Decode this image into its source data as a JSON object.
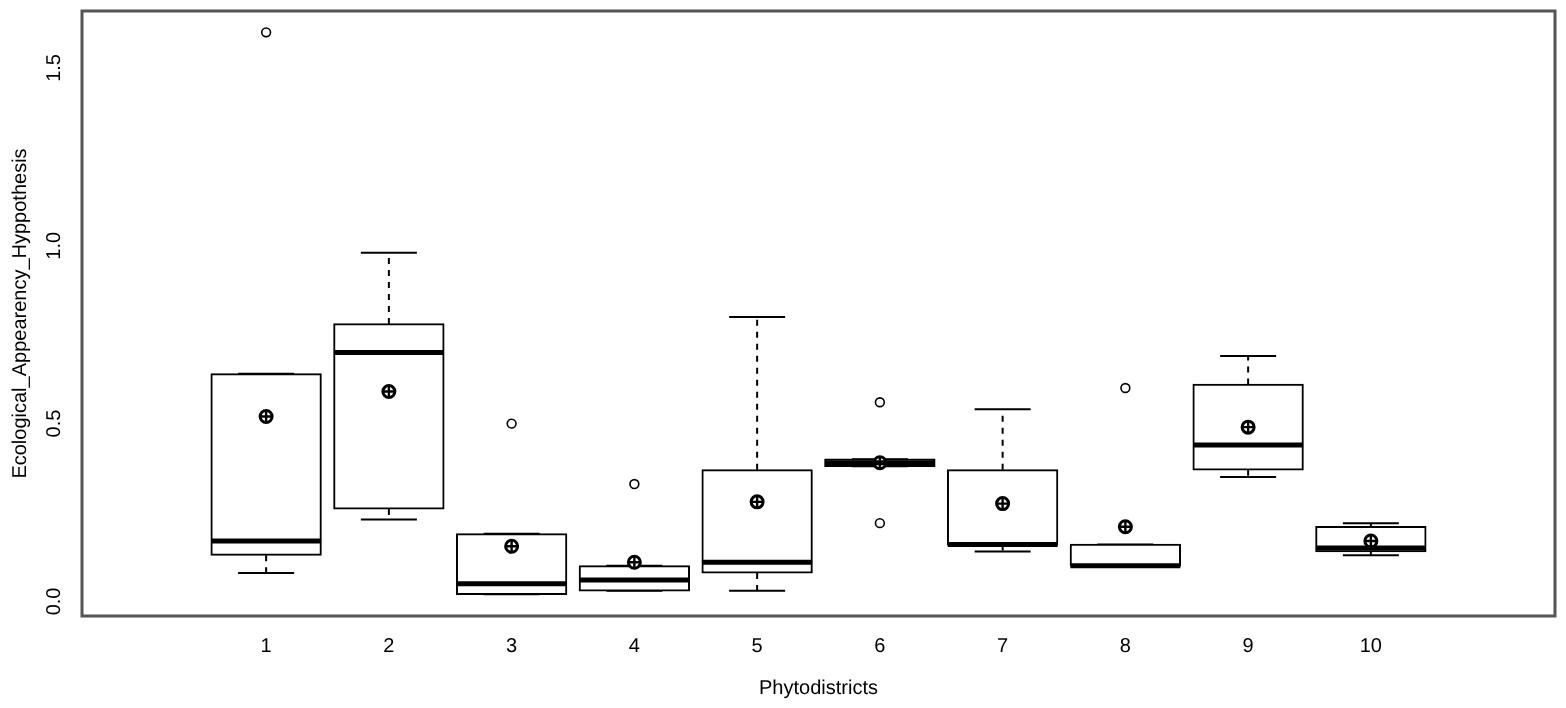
{
  "chart_data": {
    "type": "box",
    "xlabel": "Phytodistricts",
    "ylabel": "Ecological_Appearency_Hyppothesis",
    "categories": [
      "1",
      "2",
      "3",
      "4",
      "5",
      "6",
      "7",
      "8",
      "9",
      "10"
    ],
    "boxes": [
      {
        "low": 0.08,
        "q1": 0.13,
        "median": 0.17,
        "q3": 0.64,
        "high": 0.64,
        "mean": 0.52,
        "outliers": [
          1.6
        ]
      },
      {
        "low": 0.23,
        "q1": 0.26,
        "median": 0.7,
        "q3": 0.78,
        "high": 0.98,
        "mean": 0.59
      },
      {
        "low": 0.02,
        "q1": 0.02,
        "median": 0.05,
        "q3": 0.19,
        "high": 0.19,
        "mean": 0.155,
        "outliers": [
          0.5
        ]
      },
      {
        "low": 0.03,
        "q1": 0.03,
        "median": 0.06,
        "q3": 0.1,
        "high": 0.1,
        "mean": 0.11,
        "outliers": [
          0.33
        ]
      },
      {
        "low": 0.03,
        "q1": 0.08,
        "median": 0.11,
        "q3": 0.37,
        "high": 0.8,
        "mean": 0.28
      },
      {
        "low": 0.38,
        "q1": 0.38,
        "median": 0.39,
        "q3": 0.4,
        "high": 0.4,
        "mean": 0.39,
        "outliers": [
          0.56,
          0.22
        ]
      },
      {
        "low": 0.14,
        "q1": 0.16,
        "median": 0.16,
        "q3": 0.37,
        "high": 0.54,
        "mean": 0.275
      },
      {
        "low": 0.1,
        "q1": 0.1,
        "median": 0.1,
        "q3": 0.16,
        "high": 0.16,
        "mean": 0.21,
        "outliers": [
          0.6
        ]
      },
      {
        "low": 0.35,
        "q1": 0.37,
        "median": 0.44,
        "q3": 0.61,
        "high": 0.69,
        "mean": 0.49
      },
      {
        "low": 0.13,
        "q1": 0.14,
        "median": 0.15,
        "q3": 0.21,
        "high": 0.22,
        "mean": 0.17
      }
    ],
    "ylim": [
      -0.041,
      1.66
    ],
    "yticks": [
      {
        "value": 0,
        "label": "0.0"
      },
      {
        "value": 0.5,
        "label": "0.5"
      },
      {
        "value": 1,
        "label": "1.0"
      },
      {
        "value": 1.5,
        "label": "1.5"
      }
    ]
  }
}
